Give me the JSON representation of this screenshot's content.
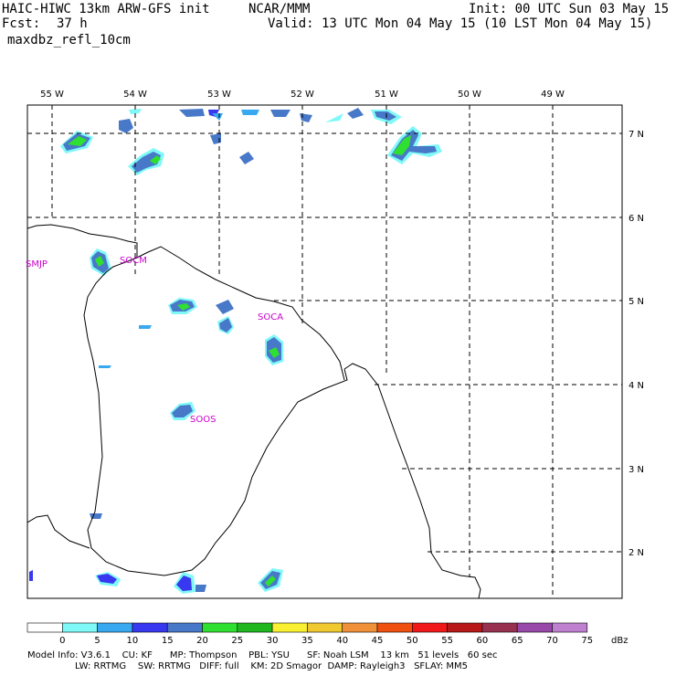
{
  "header": {
    "line1_left": "HAIC-HIWC 13km ARW-GFS init",
    "line1_mid": "NCAR/MMM",
    "line1_right": "Init: 00 UTC Sun 03 May 15",
    "fcst_label": "Fcst:",
    "fcst_value": "37 h",
    "valid": "Valid: 13 UTC Mon 04 May 15 (10 LST Mon 04 May 15)",
    "field": "maxdbz_refl_10cm"
  },
  "map": {
    "lon_labels": [
      "55 W",
      "54 W",
      "53 W",
      "52 W",
      "51 W",
      "50 W",
      "49 W"
    ],
    "lat_labels": [
      "7 N",
      "6 N",
      "5 N",
      "4 N",
      "3 N",
      "2 N"
    ],
    "stations": [
      "SMJP",
      "SOCM",
      "SOCA",
      "SOOS"
    ]
  },
  "colorbar": {
    "ticks": [
      "0",
      "5",
      "10",
      "15",
      "20",
      "25",
      "30",
      "35",
      "40",
      "45",
      "50",
      "55",
      "60",
      "65",
      "70",
      "75"
    ],
    "unit": "dBz",
    "colors": [
      "#ffffff",
      "#7ff8f8",
      "#38a8f0",
      "#3838f0",
      "#4878c8",
      "#30e030",
      "#20b820",
      "#f8f030",
      "#f0c830",
      "#f09038",
      "#f05010",
      "#f01818",
      "#b81818",
      "#983050",
      "#9848a8",
      "#c080d0"
    ]
  },
  "footer": {
    "line1": "Model Info: V3.6.1    CU: KF      MP: Thompson    PBL: YSU      SF: Noah LSM    13 km   51 levels   60 sec",
    "line2": "LW: RRTMG    SW: RRTMG   DIFF: full    KM: 2D Smagor  DAMP: Rayleigh3   SFLAY: MM5"
  }
}
